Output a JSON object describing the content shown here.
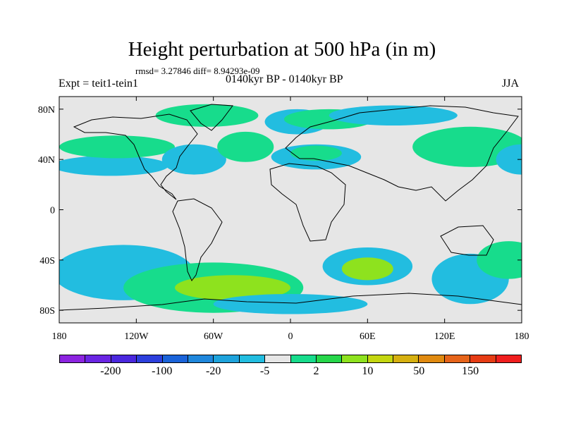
{
  "title": "Height perturbation at 500 hPa (in m)",
  "stats_text": "rmsd= 3.27846 diff= 8.94293e-09",
  "experiment": "Expt = teit1-tein1",
  "period": "0140kyr BP - 0140kyr BP",
  "season": "JJA",
  "map": {
    "lon_range": [
      -180,
      180
    ],
    "lat_range": [
      -90,
      90
    ],
    "ocean_color": "#e6e6e6",
    "lat_ticks": [
      {
        "value": 80,
        "label": "80N"
      },
      {
        "value": 40,
        "label": "40N"
      },
      {
        "value": 0,
        "label": "0"
      },
      {
        "value": -40,
        "label": "40S"
      },
      {
        "value": -80,
        "label": "80S"
      }
    ],
    "lon_ticks": [
      {
        "value": -180,
        "label": "180"
      },
      {
        "value": -120,
        "label": "120W"
      },
      {
        "value": -60,
        "label": "60W"
      },
      {
        "value": 0,
        "label": "0"
      },
      {
        "value": 60,
        "label": "60E"
      },
      {
        "value": 120,
        "label": "120E"
      },
      {
        "value": 180,
        "label": "180"
      }
    ]
  },
  "colorbar": {
    "colors": [
      "#8c24e0",
      "#6a25e3",
      "#4a27de",
      "#2c3fdd",
      "#1a63d9",
      "#1f87dc",
      "#1ea3dc",
      "#22bde0",
      "#e6e6e6",
      "#17dc8c",
      "#26d64a",
      "#8ee21e",
      "#c4d610",
      "#d6b010",
      "#e08a10",
      "#e6641a",
      "#e63c14",
      "#f01e1e"
    ],
    "labels": [
      "-200",
      "-100",
      "-20",
      "-5",
      "2",
      "10",
      "50",
      "150"
    ],
    "label_boundaries": [
      1,
      3,
      5,
      7,
      9,
      11,
      13,
      15
    ]
  },
  "perturbations": [
    {
      "lon": -140,
      "lat": 35,
      "rx": 45,
      "ry": 8,
      "level": "cyan"
    },
    {
      "lon": -135,
      "lat": 50,
      "rx": 45,
      "ry": 9,
      "level": "green"
    },
    {
      "lon": -65,
      "lat": 75,
      "rx": 40,
      "ry": 9,
      "level": "green"
    },
    {
      "lon": -75,
      "lat": 40,
      "rx": 25,
      "ry": 12,
      "level": "cyan"
    },
    {
      "lon": -35,
      "lat": 50,
      "rx": 22,
      "ry": 12,
      "level": "green"
    },
    {
      "lon": 5,
      "lat": 70,
      "rx": 25,
      "ry": 10,
      "level": "cyan"
    },
    {
      "lon": 30,
      "lat": 72,
      "rx": 35,
      "ry": 8,
      "level": "green"
    },
    {
      "lon": 20,
      "lat": 42,
      "rx": 35,
      "ry": 10,
      "level": "cyan"
    },
    {
      "lon": 20,
      "lat": 45,
      "rx": 20,
      "ry": 6,
      "level": "green"
    },
    {
      "lon": 80,
      "lat": 75,
      "rx": 50,
      "ry": 8,
      "level": "cyan"
    },
    {
      "lon": 140,
      "lat": 50,
      "rx": 45,
      "ry": 16,
      "level": "green"
    },
    {
      "lon": 180,
      "lat": 40,
      "rx": 20,
      "ry": 12,
      "level": "cyan"
    },
    {
      "lon": -130,
      "lat": -50,
      "rx": 55,
      "ry": 22,
      "level": "cyan"
    },
    {
      "lon": -60,
      "lat": -62,
      "rx": 70,
      "ry": 20,
      "level": "green"
    },
    {
      "lon": -45,
      "lat": -62,
      "rx": 45,
      "ry": 10,
      "level": "yellowgreen"
    },
    {
      "lon": 0,
      "lat": -75,
      "rx": 60,
      "ry": 8,
      "level": "cyan"
    },
    {
      "lon": 60,
      "lat": -45,
      "rx": 35,
      "ry": 15,
      "level": "cyan"
    },
    {
      "lon": 60,
      "lat": -47,
      "rx": 20,
      "ry": 9,
      "level": "yellowgreen"
    },
    {
      "lon": 140,
      "lat": -55,
      "rx": 30,
      "ry": 20,
      "level": "cyan"
    },
    {
      "lon": 170,
      "lat": -40,
      "rx": 25,
      "ry": 15,
      "level": "green"
    }
  ]
}
